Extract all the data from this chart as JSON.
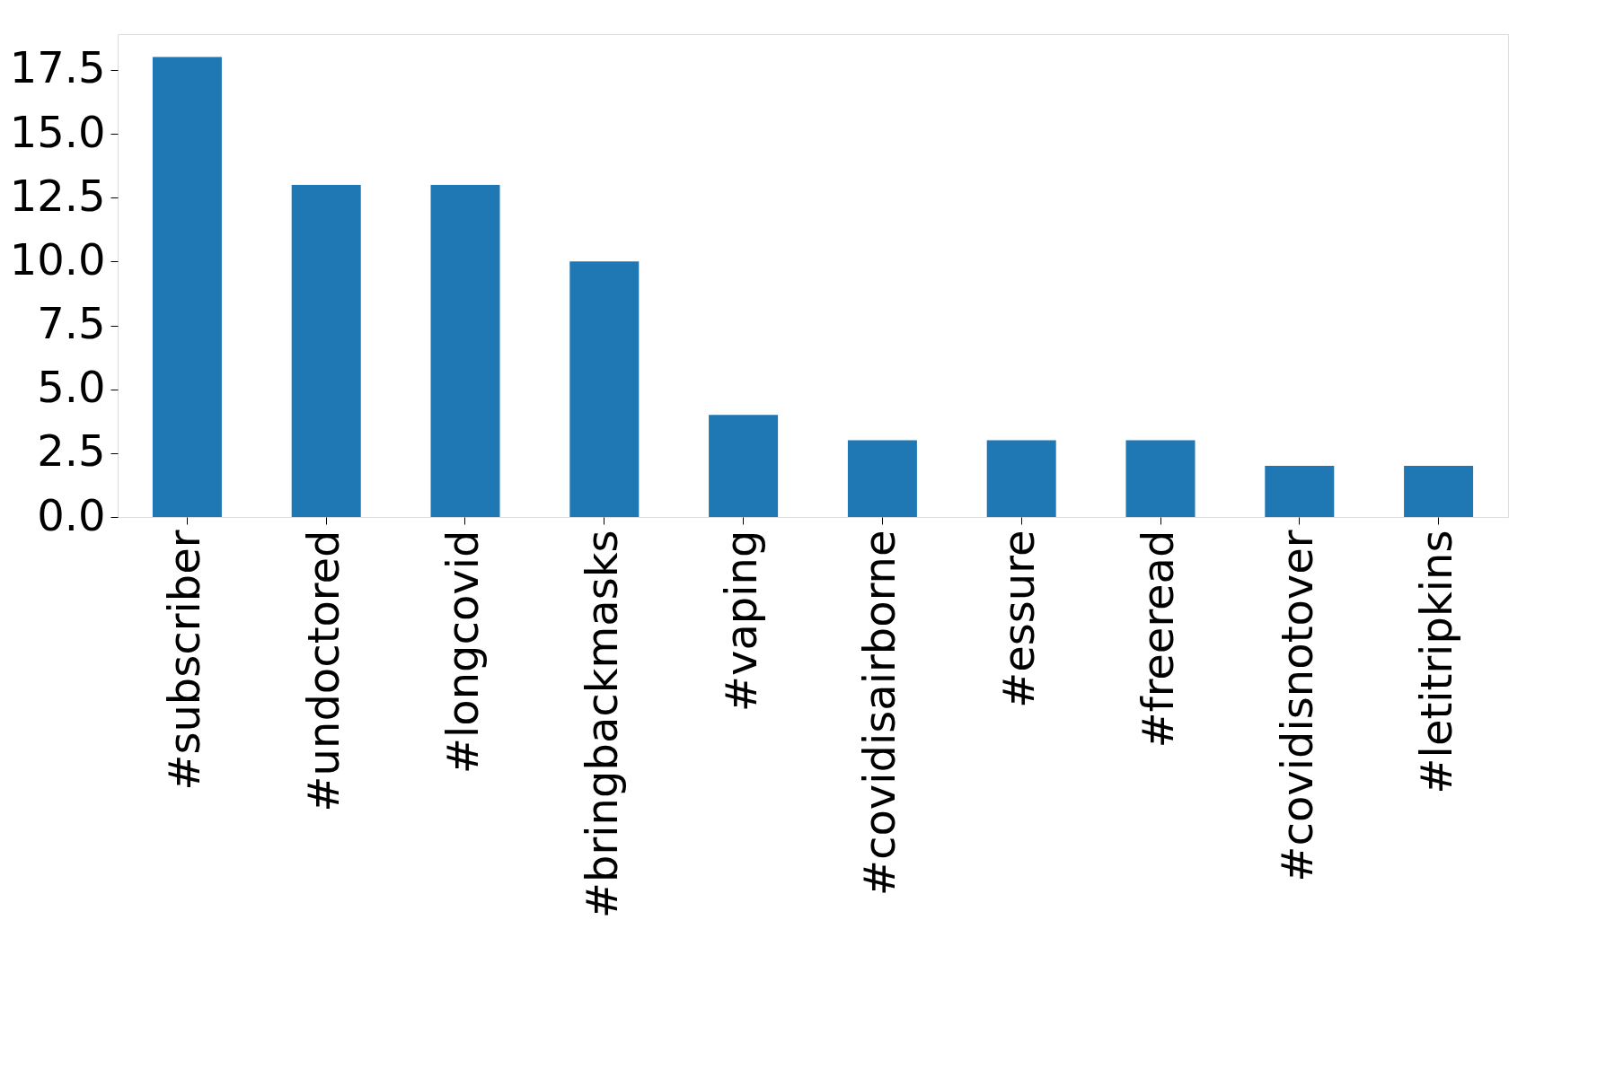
{
  "chart_data": {
    "type": "bar",
    "categories": [
      "#subscriber",
      "#undoctored",
      "#longcovid",
      "#bringbackmasks",
      "#vaping",
      "#covidisairborne",
      "#essure",
      "#freeread",
      "#covidisnotover",
      "#letitripkins"
    ],
    "values": [
      18,
      13,
      13,
      10,
      4,
      3,
      3,
      3,
      2,
      2
    ],
    "color": "#1f77b4",
    "ylim": [
      0,
      18.9
    ],
    "yticks": [
      {
        "value": 0,
        "label": "0.0"
      },
      {
        "value": 2.5,
        "label": "2.5"
      },
      {
        "value": 5,
        "label": "5.0"
      },
      {
        "value": 7.5,
        "label": "7.5"
      },
      {
        "value": 10,
        "label": "10.0"
      },
      {
        "value": 12.5,
        "label": "12.5"
      },
      {
        "value": 15,
        "label": "15.0"
      },
      {
        "value": 17.5,
        "label": "17.5"
      }
    ],
    "grid": false
  }
}
